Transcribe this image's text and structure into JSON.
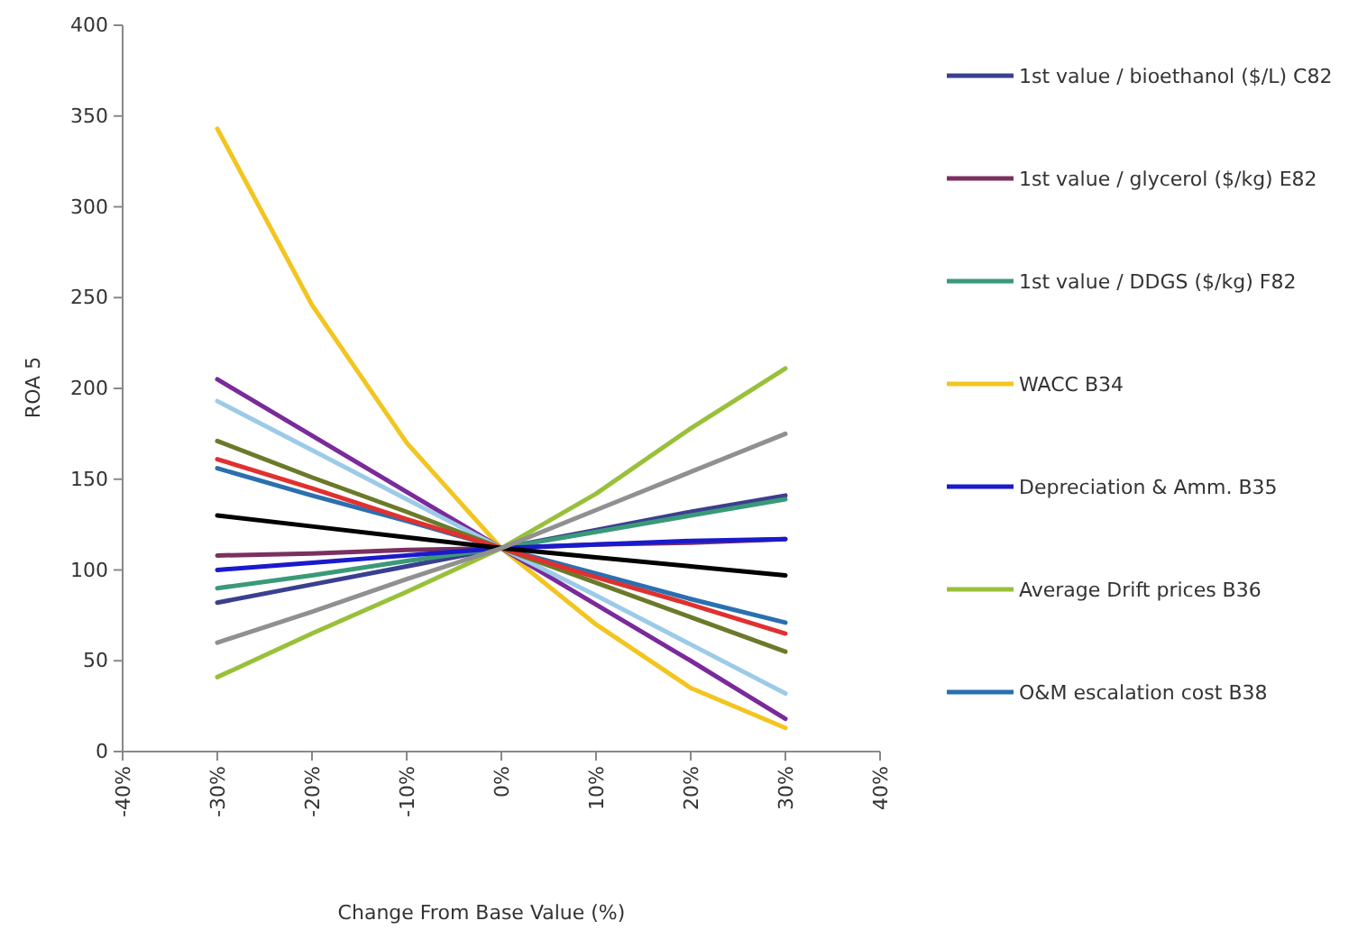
{
  "chart_data": {
    "type": "line",
    "xlabel": "Change From Base Value (%)",
    "ylabel": "ROA 5",
    "x": [
      -30,
      -20,
      -10,
      0,
      10,
      20,
      30
    ],
    "xlim": [
      -40,
      40
    ],
    "xticks": [
      {
        "value": -40,
        "label": "-40%"
      },
      {
        "value": -30,
        "label": "-30%"
      },
      {
        "value": -20,
        "label": "-20%"
      },
      {
        "value": -10,
        "label": "-10%"
      },
      {
        "value": 0,
        "label": "0%"
      },
      {
        "value": 10,
        "label": "10%"
      },
      {
        "value": 20,
        "label": "20%"
      },
      {
        "value": 30,
        "label": "30%"
      },
      {
        "value": 40,
        "label": "40%"
      }
    ],
    "ylim": [
      0,
      400
    ],
    "yticks": [
      0,
      50,
      100,
      150,
      200,
      250,
      300,
      350,
      400
    ],
    "grid": false,
    "legend": "right",
    "marker": "none",
    "line_style": "solid",
    "series": [
      {
        "name": "1st value / bioethanol ($/L) C82",
        "color": "#3b3f8f",
        "values": [
          82,
          92,
          102,
          112,
          122,
          132,
          141
        ]
      },
      {
        "name": "1st value / glycerol ($/kg) E82",
        "color": "#7b3060",
        "values": [
          108,
          109,
          111,
          112,
          114,
          115,
          117
        ]
      },
      {
        "name": "1st value / DDGS ($/kg) F82",
        "color": "#3a9a78",
        "values": [
          90,
          97,
          105,
          112,
          121,
          130,
          139
        ]
      },
      {
        "name": "WACC B34",
        "color": "#f2c520",
        "values": [
          343,
          246,
          170,
          112,
          70,
          35,
          13
        ]
      },
      {
        "name": "Depreciation & Amm. B35",
        "color": "#1a1acc",
        "values": [
          100,
          104,
          108,
          112,
          114,
          116,
          117
        ]
      },
      {
        "name": "Average Drift prices B36",
        "color": "#99c03a",
        "values": [
          41,
          65,
          88,
          112,
          142,
          178,
          211
        ]
      },
      {
        "name": "O&M escalation cost B38",
        "color": "#2a70b0",
        "values": [
          156,
          141,
          127,
          112,
          98,
          84,
          71
        ]
      },
      {
        "color": "#7a2a9a",
        "values": [
          205,
          174,
          143,
          112,
          81,
          50,
          18
        ]
      },
      {
        "color": "#9ccbe8",
        "values": [
          193,
          166,
          139,
          112,
          86,
          59,
          32
        ]
      },
      {
        "color": "#6b7a2a",
        "values": [
          171,
          151,
          132,
          112,
          93,
          74,
          55
        ]
      },
      {
        "color": "#e03030",
        "values": [
          161,
          145,
          128,
          112,
          96,
          81,
          65
        ]
      },
      {
        "color": "#000000",
        "values": [
          130,
          124,
          118,
          112,
          107,
          102,
          97
        ]
      },
      {
        "color": "#909090",
        "values": [
          60,
          77,
          95,
          112,
          133,
          154,
          175
        ]
      }
    ]
  }
}
